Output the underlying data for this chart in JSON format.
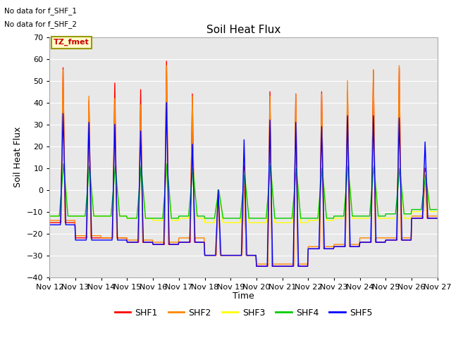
{
  "title": "Soil Heat Flux",
  "ylabel": "Soil Heat Flux",
  "xlabel": "Time",
  "ylim": [
    -40,
    70
  ],
  "bg_color": "#e8e8e8",
  "annotations": [
    "No data for f_SHF_1",
    "No data for f_SHF_2"
  ],
  "tz_label": "TZ_fmet",
  "legend_entries": [
    "SHF1",
    "SHF2",
    "SHF3",
    "SHF4",
    "SHF5"
  ],
  "legend_colors": [
    "#ff0000",
    "#ff8800",
    "#ffff00",
    "#00cc00",
    "#0000ff"
  ],
  "xtick_labels": [
    "Nov 12",
    "Nov 13",
    "Nov 14",
    "Nov 15",
    "Nov 16",
    "Nov 17",
    "Nov 18",
    "Nov 19",
    "Nov 20",
    "Nov 21",
    "Nov 22",
    "Nov 23",
    "Nov 24",
    "Nov 25",
    "Nov 26",
    "Nov 27"
  ],
  "series_colors": [
    "#ff0000",
    "#ff8800",
    "#ffff00",
    "#00cc00",
    "#0000ff"
  ],
  "figsize": [
    6.4,
    4.8
  ],
  "dpi": 100
}
